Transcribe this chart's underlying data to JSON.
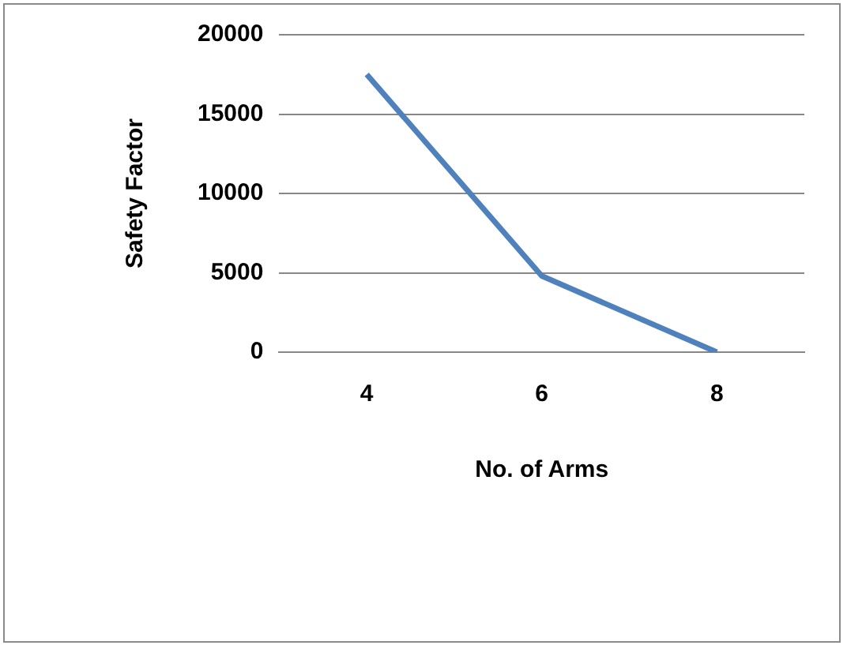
{
  "chart_data": {
    "type": "line",
    "xlabel": "No. of Arms",
    "ylabel": "Safety Factor",
    "categories": [
      "4",
      "6",
      "8"
    ],
    "series": [
      {
        "color": "#4f81bd",
        "values": [
          17500,
          4800,
          0
        ]
      }
    ],
    "ylim": [
      0,
      20000
    ],
    "yticks": [
      0,
      5000,
      10000,
      15000,
      20000
    ],
    "grid": "y",
    "legend": false,
    "marker": "none",
    "line_style": "solid"
  }
}
